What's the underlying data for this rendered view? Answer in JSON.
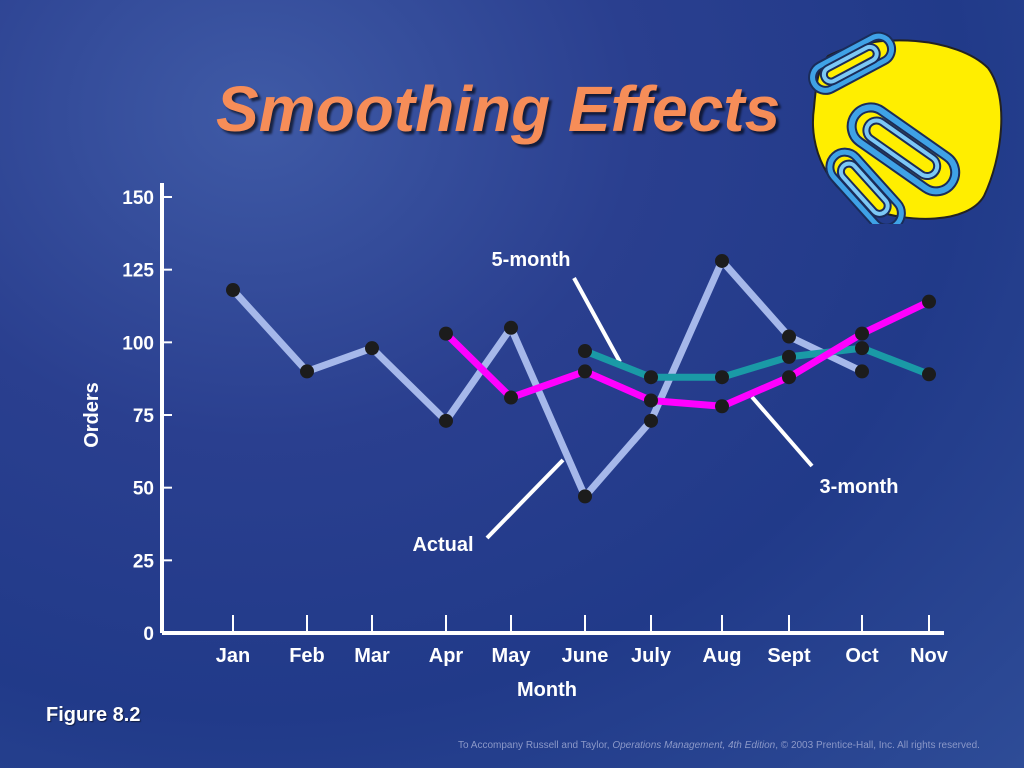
{
  "slide": {
    "title": "Smoothing Effects",
    "figure_label": "Figure 8.2",
    "footer": {
      "prefix": "To Accompany Russell and Taylor, ",
      "book": "Operations Management, 4th Edition",
      "suffix": ", © 2003 Prentice-Hall, Inc. All rights reserved."
    },
    "clip_art_icon": "paperclips-icon"
  },
  "chart_data": {
    "type": "line",
    "xlabel": "Month",
    "ylabel": "Orders",
    "categories": [
      "Jan",
      "Feb",
      "Mar",
      "Apr",
      "May",
      "June",
      "July",
      "Aug",
      "Sept",
      "Oct",
      "Nov"
    ],
    "ylim": [
      0,
      150
    ],
    "yticks": [
      0,
      25,
      50,
      75,
      100,
      125,
      150
    ],
    "grid": false,
    "series": [
      {
        "name": "Actual",
        "color": "#a6b8ea",
        "values": [
          118,
          90,
          98,
          73,
          105,
          47,
          73,
          128,
          102,
          90,
          null
        ]
      },
      {
        "name": "5-month",
        "color": "#1a9aa6",
        "values": [
          null,
          null,
          null,
          null,
          null,
          97,
          88,
          88,
          95,
          98,
          89
        ]
      },
      {
        "name": "3-month",
        "color": "#ff00ff",
        "values": [
          null,
          null,
          null,
          103,
          81,
          90,
          80,
          78,
          88,
          103,
          114
        ]
      }
    ],
    "annotations": [
      {
        "text": "5-month",
        "series": "5-month"
      },
      {
        "text": "3-month",
        "series": "3-month"
      },
      {
        "text": "Actual",
        "series": "Actual"
      }
    ]
  }
}
